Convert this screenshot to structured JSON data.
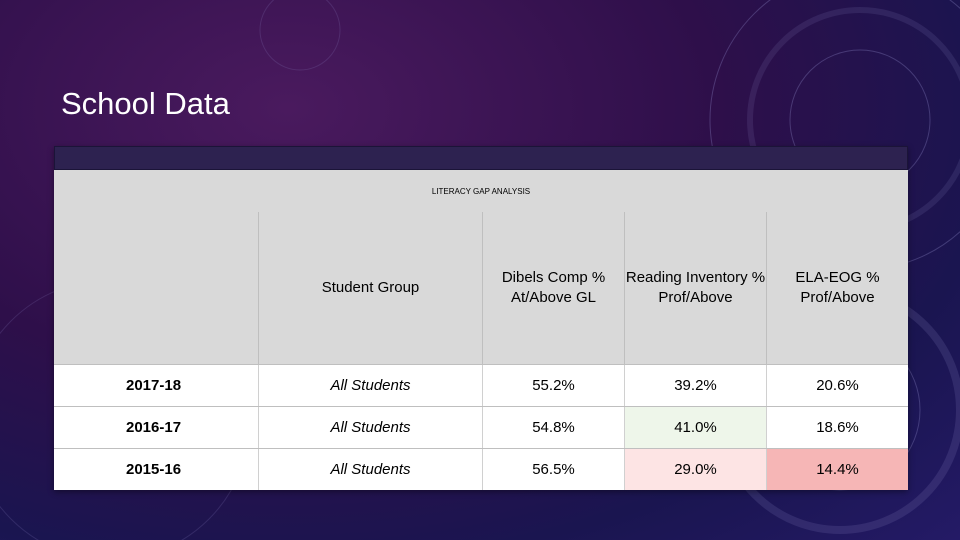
{
  "slide": {
    "title": "School Data"
  },
  "table": {
    "caption": "LITERACY GAP ANALYSIS",
    "headers": [
      "",
      "Student Group",
      "Dibels Comp % At/Above GL",
      "Reading Inventory % Prof/Above",
      "ELA-EOG % Prof/Above"
    ],
    "rows": [
      {
        "year": "2017-18",
        "group": "All Students",
        "dibels": "55.2%",
        "reading": "39.2%",
        "ela": "20.6%"
      },
      {
        "year": "2016-17",
        "group": "All Students",
        "dibels": "54.8%",
        "reading": "41.0%",
        "ela": "18.6%"
      },
      {
        "year": "2015-16",
        "group": "All Students",
        "dibels": "56.5%",
        "reading": "29.0%",
        "ela": "14.4%"
      }
    ],
    "highlight_colors": {
      "light_green": "#eef6ea",
      "light_pink": "#fde4e4",
      "pink": "#f6b6b6"
    }
  }
}
